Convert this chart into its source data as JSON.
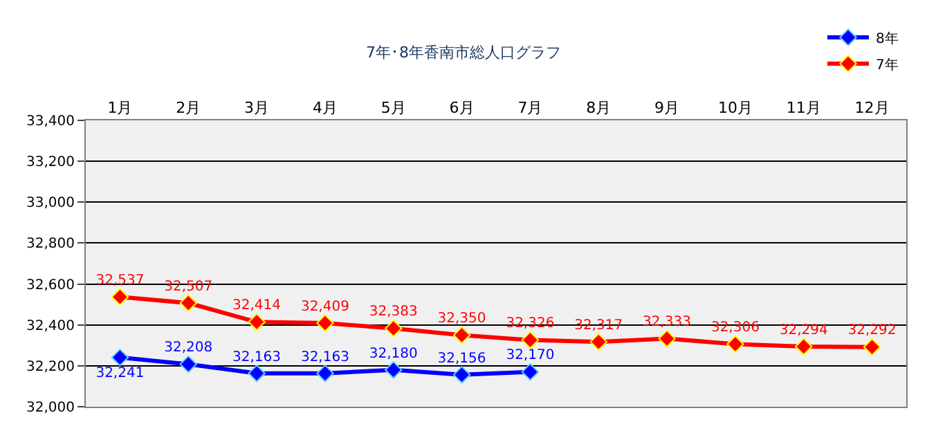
{
  "chart_data": {
    "type": "line",
    "title": "7年･8年香南市総人口グラフ",
    "categories": [
      "1月",
      "2月",
      "3月",
      "4月",
      "5月",
      "6月",
      "7月",
      "8月",
      "9月",
      "10月",
      "11月",
      "12月"
    ],
    "series": [
      {
        "name": "8年",
        "color": "#0000ff",
        "values": [
          32241,
          32208,
          32163,
          32163,
          32180,
          32156,
          32170,
          null,
          null,
          null,
          null,
          null
        ],
        "value_labels": [
          "32,241",
          "32,208",
          "32,163",
          "32,163",
          "32,180",
          "32,156",
          "32,170",
          null,
          null,
          null,
          null,
          null
        ]
      },
      {
        "name": "7年",
        "color": "#ff0000",
        "values": [
          32537,
          32507,
          32414,
          32409,
          32383,
          32350,
          32326,
          32317,
          32333,
          32306,
          32294,
          32292
        ],
        "value_labels": [
          "32,537",
          "32,507",
          "32,414",
          "32,409",
          "32,383",
          "32,350",
          "32,326",
          "32,317",
          "32,333",
          "32,306",
          "32,294",
          "32,292"
        ]
      }
    ],
    "ylim": [
      32000,
      33400
    ],
    "yticks": [
      {
        "value": 32000,
        "label": "32,000"
      },
      {
        "value": 32200,
        "label": "32,200"
      },
      {
        "value": 32400,
        "label": "32,400"
      },
      {
        "value": 32600,
        "label": "32,600"
      },
      {
        "value": 32800,
        "label": "32,800"
      },
      {
        "value": 33000,
        "label": "33,000"
      },
      {
        "value": 33200,
        "label": "33,200"
      },
      {
        "value": 33400,
        "label": "33,400"
      }
    ],
    "grid": "y",
    "legend": "top right",
    "marker": "diamond",
    "line_style": "solid"
  }
}
